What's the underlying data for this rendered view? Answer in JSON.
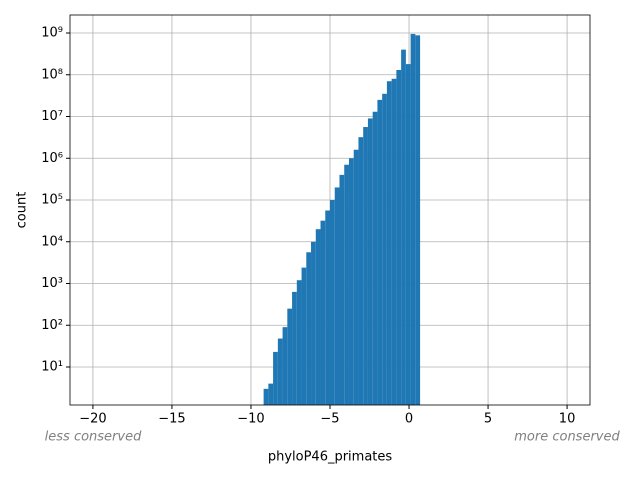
{
  "chart_data": {
    "type": "histogram",
    "xlabel": "phyloP46_primates",
    "ylabel": "count",
    "annotations": [
      "less conserved",
      "more conserved"
    ],
    "bins": [
      -9.2,
      -8.9,
      -8.6,
      -8.3,
      -8,
      -7.7,
      -7.4,
      -7.1,
      -6.8,
      -6.5,
      -6.2,
      -5.9,
      -5.6,
      -5.3,
      -5,
      -4.7,
      -4.4,
      -4.1,
      -3.8,
      -3.5,
      -3.2,
      -2.9,
      -2.6,
      -2.3,
      -2,
      -1.7,
      -1.4,
      -1.1,
      -0.8,
      -0.5,
      -0.2,
      0.1,
      0.4,
      0.7
    ],
    "counts": [
      3,
      4,
      23,
      48,
      90,
      250,
      630,
      1200,
      2400,
      5600,
      10000,
      20000,
      32000,
      56000,
      100000,
      200000,
      400000,
      700000,
      1000000,
      1600000,
      3200000,
      5600000,
      9000000,
      13000000,
      25000000,
      35000000,
      70000000,
      80000000,
      130000000,
      400000000,
      180000000,
      950000000,
      880000000
    ],
    "color": "#1f77b4",
    "xlim": [
      -21.45,
      11.45
    ],
    "xticks": [
      {
        "value": -20,
        "label": "−20"
      },
      {
        "value": -15,
        "label": "−15"
      },
      {
        "value": -10,
        "label": "−10"
      },
      {
        "value": -5,
        "label": "−5"
      },
      0,
      5,
      10
    ],
    "ylim": [
      1.23,
      2700000000
    ],
    "log_y": true,
    "yticks": [
      {
        "value": 10,
        "label": "10¹"
      },
      {
        "value": 100,
        "label": "10²"
      },
      {
        "value": 1000,
        "label": "10³"
      },
      {
        "value": 10000,
        "label": "10⁴"
      },
      {
        "value": 100000,
        "label": "10⁵"
      },
      {
        "value": 1000000,
        "label": "10⁶"
      },
      {
        "value": 10000000,
        "label": "10⁷"
      },
      {
        "value": 100000000,
        "label": "10⁸"
      },
      {
        "value": 1000000000,
        "label": "10⁹"
      }
    ],
    "grid": true
  }
}
